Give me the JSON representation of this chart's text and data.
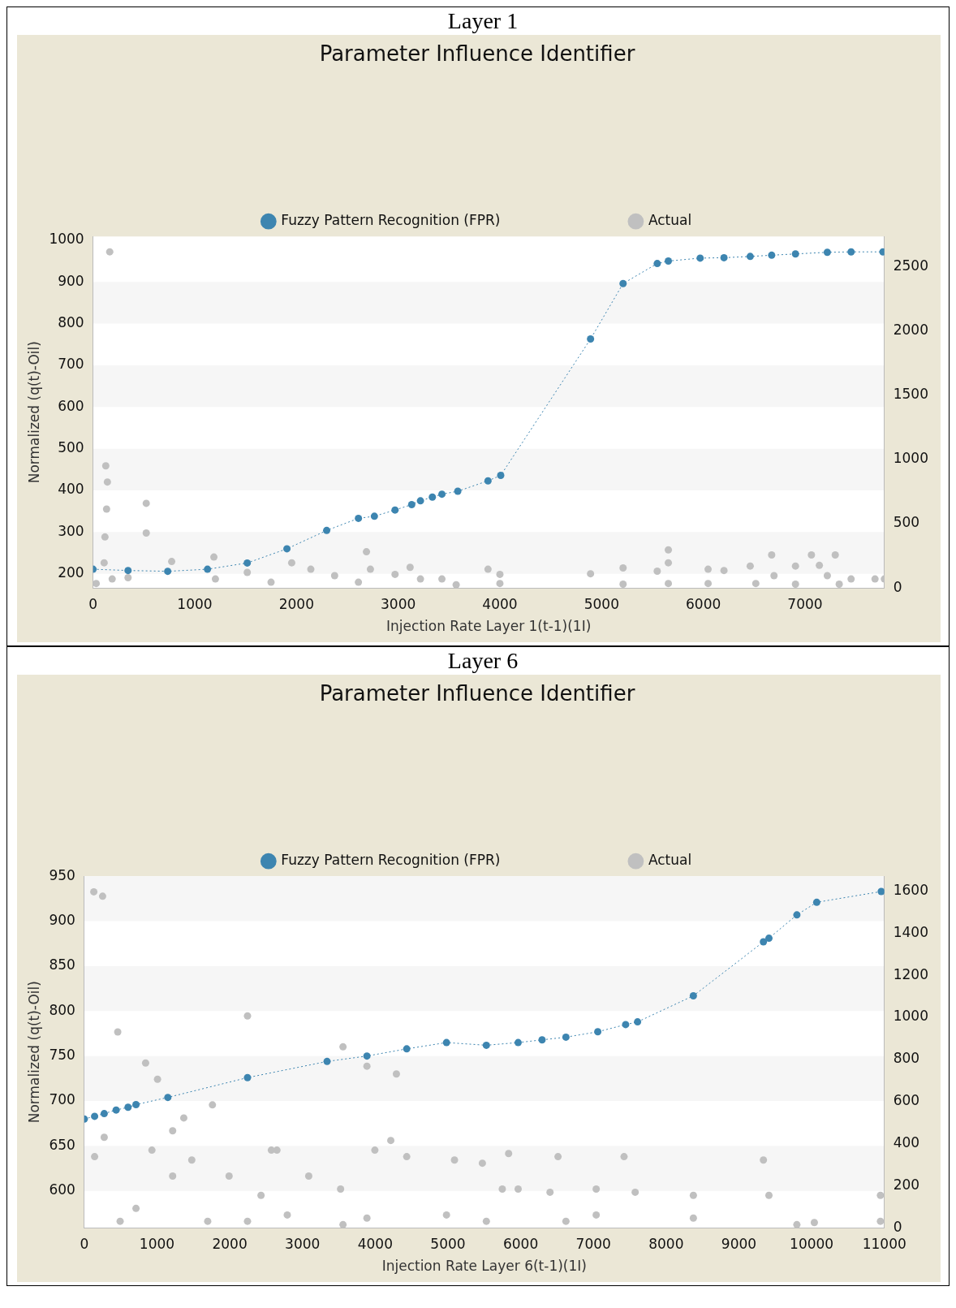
{
  "chart_data": [
    {
      "type": "scatter",
      "title": "Layer 1",
      "subtitle": "Parameter Influence Identifier",
      "xlabel": "Injection Rate Layer 1(t-1)(1I)",
      "ylabel": "Normalized (q(t)-Oil)",
      "legend": "top",
      "marker": "circle",
      "xlim": [
        0,
        7780
      ],
      "xticks": [
        0,
        1000,
        2000,
        3000,
        4000,
        5000,
        6000,
        7000
      ],
      "ylim": [
        166,
        1009
      ],
      "yticks": [
        200,
        300,
        400,
        500,
        600,
        700,
        800,
        900,
        1000
      ],
      "y2lim": [
        0,
        2736
      ],
      "y2ticks": [
        0,
        500,
        1000,
        1500,
        2000,
        2500
      ],
      "series": [
        {
          "name": "Fuzzy Pattern Recognition (FPR)",
          "type": "line",
          "line_style": "dotted",
          "color": "#3d85b0",
          "x": [
            0,
            344,
            734,
            1125,
            1516,
            1906,
            2297,
            2609,
            2766,
            2969,
            3133,
            3219,
            3336,
            3430,
            3586,
            3883,
            4008,
            4891,
            5211,
            5547,
            5656,
            5969,
            6203,
            6461,
            6672,
            6906,
            7219,
            7453,
            7766
          ],
          "values": [
            211,
            208,
            206,
            211,
            226,
            260,
            304,
            333,
            338,
            353,
            366,
            375,
            384,
            391,
            398,
            423,
            436,
            763,
            896,
            944,
            950,
            957,
            958,
            961,
            964,
            967,
            971,
            972,
            972
          ]
        },
        {
          "name": "Actual",
          "type": "scatter",
          "axis": "y2",
          "color": "#c0c0c0",
          "x": [
            164,
            125,
            141,
            133,
            117,
            109,
            188,
            31,
            523,
            523,
            773,
            344,
            1203,
            1188,
            1516,
            1750,
            1953,
            2141,
            2375,
            2688,
            2727,
            2609,
            2969,
            3117,
            3219,
            3430,
            3570,
            3883,
            4000,
            4000,
            4891,
            5211,
            5211,
            5547,
            5656,
            5656,
            5656,
            6047,
            6203,
            6461,
            6672,
            6695,
            6906,
            7063,
            7141,
            7297,
            7219,
            7336,
            7453,
            7688,
            7780,
            6047,
            6516,
            6906
          ],
          "values": [
            2616,
            951,
            825,
            614,
            397,
            196,
            70,
            35,
            659,
            428,
            206,
            80,
            70,
            241,
            121,
            45,
            196,
            146,
            96,
            282,
            146,
            45,
            106,
            161,
            70,
            70,
            25,
            146,
            106,
            35,
            111,
            156,
            30,
            131,
            297,
            196,
            35,
            146,
            136,
            171,
            257,
            96,
            171,
            257,
            176,
            257,
            96,
            30,
            70,
            70,
            70,
            35,
            35,
            30
          ]
        }
      ]
    },
    {
      "type": "scatter",
      "title": "Layer 6",
      "subtitle": "Parameter Influence Identifier",
      "xlabel": "Injection Rate Layer 6(t-1)(1I)",
      "ylabel": "Normalized (q(t)-Oil)",
      "legend": "top",
      "marker": "circle",
      "xlim": [
        0,
        11000
      ],
      "xticks": [
        0,
        1000,
        2000,
        3000,
        4000,
        5000,
        6000,
        7000,
        8000,
        9000,
        10000,
        11000
      ],
      "ylim": [
        559,
        950
      ],
      "yticks": [
        600,
        650,
        700,
        750,
        800,
        850,
        900,
        950
      ],
      "y2lim": [
        0,
        1671
      ],
      "y2ticks": [
        0,
        200,
        400,
        600,
        800,
        1000,
        1200,
        1400,
        1600
      ],
      "series": [
        {
          "name": "Fuzzy Pattern Recognition (FPR)",
          "type": "line",
          "line_style": "dotted",
          "color": "#3d85b0",
          "x": [
            0,
            142,
            274,
            438,
            602,
            711,
            1149,
            2244,
            3338,
            3886,
            4433,
            4980,
            5528,
            5965,
            6294,
            6622,
            7060,
            7443,
            7607,
            8374,
            9337,
            9413,
            9797,
            10070,
            10957
          ],
          "values": [
            680,
            683,
            686,
            690,
            693,
            696,
            704,
            726,
            744,
            750,
            758,
            765,
            762,
            765,
            768,
            771,
            777,
            785,
            788,
            817,
            877,
            881,
            907,
            921,
            933
          ]
        },
        {
          "name": "Actual",
          "type": "scatter",
          "axis": "y2",
          "color": "#c0c0c0",
          "x": [
            131,
            252,
            460,
            843,
            1007,
            1762,
            2244,
            3557,
            4291,
            3886,
            930,
            1215,
            1215,
            1478,
            1991,
            2430,
            2649,
            3086,
            3524,
            3995,
            4433,
            5090,
            5473,
            2791,
            1697,
            3886,
            4980,
            711,
            2244,
            3557,
            274,
            142,
            493,
            5834,
            5965,
            6403,
            6513,
            7038,
            7038,
            7421,
            7574,
            8374,
            8374,
            9337,
            9413,
            9797,
            10037,
            10946,
            10946,
            6622,
            5528,
            5747,
            1368,
            2572,
            4214
          ],
          "values": [
            1597,
            1576,
            931,
            783,
            706,
            584,
            1007,
            860,
            731,
            768,
            369,
            461,
            246,
            322,
            246,
            154,
            369,
            246,
            184,
            369,
            338,
            322,
            307,
            61,
            31,
            46,
            61,
            92,
            31,
            15,
            430,
            338,
            31,
            353,
            184,
            169,
            338,
            184,
            61,
            338,
            169,
            154,
            46,
            322,
            154,
            15,
            25,
            154,
            31,
            31,
            31,
            184,
            522,
            369,
            415
          ]
        }
      ]
    }
  ]
}
